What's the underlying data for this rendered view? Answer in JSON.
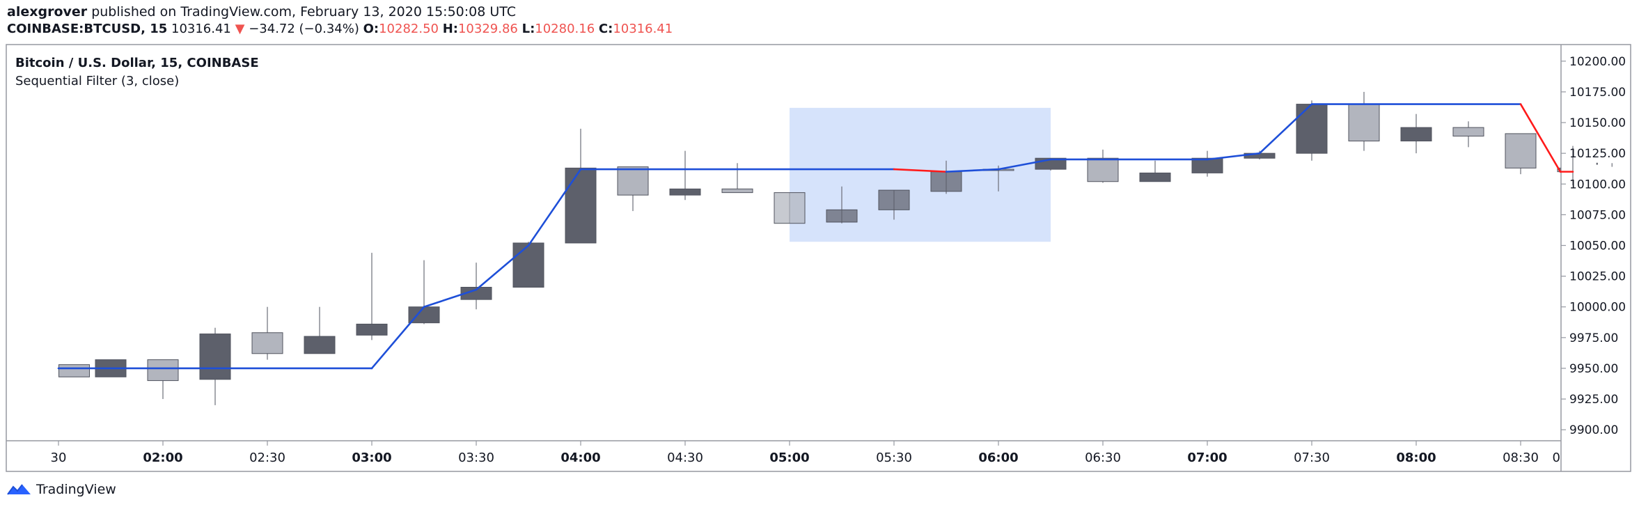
{
  "header": {
    "author": "alexgrover",
    "published_text": " published on TradingView.com, February 13, 2020 15:50:08 UTC",
    "symbol": "COINBASE:BTCUSD, 15",
    "last": "10316.41",
    "change_arrow": "▼",
    "change": "−34.72 (−0.34%)",
    "o_label": "O:",
    "o_value": "10282.50",
    "h_label": "H:",
    "h_value": "10329.86",
    "l_label": "L:",
    "l_value": "10280.16",
    "c_label": "C:",
    "c_value": "10316.41"
  },
  "colors": {
    "candle_down": "#5d606b",
    "candle_up": "#b2b5be",
    "filter_up": "#1e4fd8",
    "filter_down": "#ff1a1a",
    "selection": "#cfdefa",
    "axis_text": "#131722"
  },
  "footer": {
    "brand": "TradingView",
    "logo_icon": "tradingview-logo-icon"
  },
  "chart_data": {
    "type": "candlestick",
    "title": "Bitcoin / U.S. Dollar, 15, COINBASE",
    "indicator": "Sequential Filter (3, close)",
    "xlabel": "",
    "ylabel": "",
    "ylim": [
      9895,
      10205
    ],
    "y_ticks": [
      "9900.00",
      "9925.00",
      "9950.00",
      "9975.00",
      "10000.00",
      "10025.00",
      "10050.00",
      "10075.00",
      "10100.00",
      "10125.00",
      "10150.00",
      "10175.00",
      "10200.00"
    ],
    "x_ticks": [
      {
        "label": "30",
        "t": -1
      },
      {
        "label": "02:00",
        "t": 1
      },
      {
        "label": "02:30",
        "t": 3
      },
      {
        "label": "03:00",
        "t": 5
      },
      {
        "label": "03:30",
        "t": 7
      },
      {
        "label": "04:00",
        "t": 9
      },
      {
        "label": "04:30",
        "t": 11
      },
      {
        "label": "05:00",
        "t": 13
      },
      {
        "label": "05:30",
        "t": 15
      },
      {
        "label": "06:00",
        "t": 17
      },
      {
        "label": "06:30",
        "t": 19
      },
      {
        "label": "07:00",
        "t": 21
      },
      {
        "label": "07:30",
        "t": 23
      },
      {
        "label": "08:00",
        "t": 25
      },
      {
        "label": "08:30",
        "t": 27
      },
      {
        "label": "0",
        "t": 28.75
      }
    ],
    "candles": [
      {
        "t": -0.7,
        "o": 9943,
        "h": 9953,
        "l": 9943,
        "c": 9953
      },
      {
        "t": 0,
        "o": 9957,
        "h": 9957,
        "l": 9943,
        "c": 9943
      },
      {
        "t": 1,
        "o": 9940,
        "h": 9957,
        "l": 9925,
        "c": 9957
      },
      {
        "t": 2,
        "o": 9978,
        "h": 9983,
        "l": 9920,
        "c": 9941
      },
      {
        "t": 3,
        "o": 9962,
        "h": 10000,
        "l": 9957,
        "c": 9979
      },
      {
        "t": 4,
        "o": 9976,
        "h": 10000,
        "l": 9962,
        "c": 9962
      },
      {
        "t": 5,
        "o": 9986,
        "h": 10044,
        "l": 9973,
        "c": 9977
      },
      {
        "t": 6,
        "o": 10000,
        "h": 10038,
        "l": 9986,
        "c": 9987
      },
      {
        "t": 7,
        "o": 10016,
        "h": 10036,
        "l": 9998,
        "c": 10006
      },
      {
        "t": 8,
        "o": 10052,
        "h": 10053,
        "l": 10016,
        "c": 10016
      },
      {
        "t": 9,
        "o": 10113,
        "h": 10145,
        "l": 10052,
        "c": 10052
      },
      {
        "t": 10,
        "o": 10091,
        "h": 10114,
        "l": 10078,
        "c": 10114
      },
      {
        "t": 11,
        "o": 10096,
        "h": 10127,
        "l": 10087,
        "c": 10091
      },
      {
        "t": 12,
        "o": 10093,
        "h": 10117,
        "l": 10093,
        "c": 10096
      },
      {
        "t": 13,
        "o": 10068,
        "h": 10093,
        "l": 10068,
        "c": 10093
      },
      {
        "t": 14,
        "o": 10079,
        "h": 10098,
        "l": 10068,
        "c": 10069
      },
      {
        "t": 15,
        "o": 10095,
        "h": 10095,
        "l": 10071,
        "c": 10079
      },
      {
        "t": 16,
        "o": 10110,
        "h": 10119,
        "l": 10092,
        "c": 10094
      },
      {
        "t": 17,
        "o": 10111,
        "h": 10115,
        "l": 10094,
        "c": 10112
      },
      {
        "t": 18,
        "o": 10121,
        "h": 10121,
        "l": 10111,
        "c": 10112
      },
      {
        "t": 19,
        "o": 10102,
        "h": 10128,
        "l": 10101,
        "c": 10121
      },
      {
        "t": 20,
        "o": 10109,
        "h": 10119,
        "l": 10102,
        "c": 10102
      },
      {
        "t": 21,
        "o": 10121,
        "h": 10127,
        "l": 10106,
        "c": 10109
      },
      {
        "t": 22,
        "o": 10125,
        "h": 10127,
        "l": 10120,
        "c": 10121
      },
      {
        "t": 23,
        "o": 10165,
        "h": 10168,
        "l": 10119,
        "c": 10125
      },
      {
        "t": 24,
        "o": 10135,
        "h": 10175,
        "l": 10127,
        "c": 10165
      },
      {
        "t": 25,
        "o": 10146,
        "h": 10157,
        "l": 10125,
        "c": 10135
      },
      {
        "t": 26,
        "o": 10139,
        "h": 10151,
        "l": 10130,
        "c": 10146
      },
      {
        "t": 27,
        "o": 10113,
        "h": 10141,
        "l": 10108,
        "c": 10141
      },
      {
        "t": 28,
        "o": 10110,
        "h": 10131,
        "l": 10099,
        "c": 10113
      },
      {
        "t": 28.75,
        "o": 10116,
        "h": 10117,
        "l": 10114,
        "c": 10117
      }
    ],
    "filter": {
      "name": "Sequential Filter (3, close)",
      "t": [
        -1,
        5,
        6,
        7,
        8,
        9,
        15,
        16,
        17,
        18,
        21,
        22,
        23,
        27,
        28,
        29
      ],
      "values": [
        9950,
        9950,
        10000,
        10014,
        10050,
        10112,
        10112,
        10110,
        10112,
        10120,
        10120,
        10125,
        10165,
        10165,
        10110,
        10110
      ],
      "direction": [
        "up",
        "up",
        "up",
        "up",
        "up",
        "up",
        "down",
        "up",
        "up",
        "up",
        "up",
        "up",
        "up",
        "down",
        "down"
      ]
    },
    "selection": {
      "t_start": 13,
      "t_end": 18,
      "price_low": 10053,
      "price_high": 10162
    }
  }
}
